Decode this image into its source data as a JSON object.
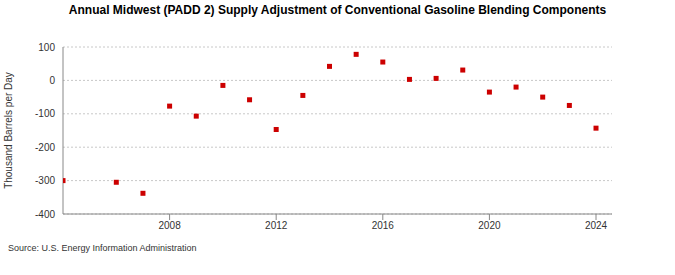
{
  "chart_data": {
    "type": "scatter",
    "title": "Annual Midwest (PADD 2) Supply Adjustment of Conventional Gasoline Blending Components",
    "y_label": "Thousand Barrels per Day",
    "source": "Source: U.S. Energy Information Administration",
    "x": [
      2004,
      2006,
      2007,
      2008,
      2009,
      2010,
      2011,
      2012,
      2013,
      2014,
      2015,
      2016,
      2017,
      2018,
      2019,
      2020,
      2021,
      2022,
      2023,
      2024
    ],
    "values": [
      -300,
      -305,
      -338,
      -77,
      -107,
      -15,
      -58,
      -147,
      -45,
      42,
      78,
      55,
      3,
      6,
      31,
      -35,
      -20,
      -50,
      -75,
      -143
    ],
    "color": "#cc0000",
    "marker": "square",
    "xlim": [
      2004,
      2024.6
    ],
    "xticks": [
      2008,
      2012,
      2016,
      2020,
      2024
    ],
    "ylim": [
      -400,
      100
    ],
    "yticks": [
      -400,
      -300,
      -200,
      -100,
      0,
      100
    ],
    "grid": true
  }
}
